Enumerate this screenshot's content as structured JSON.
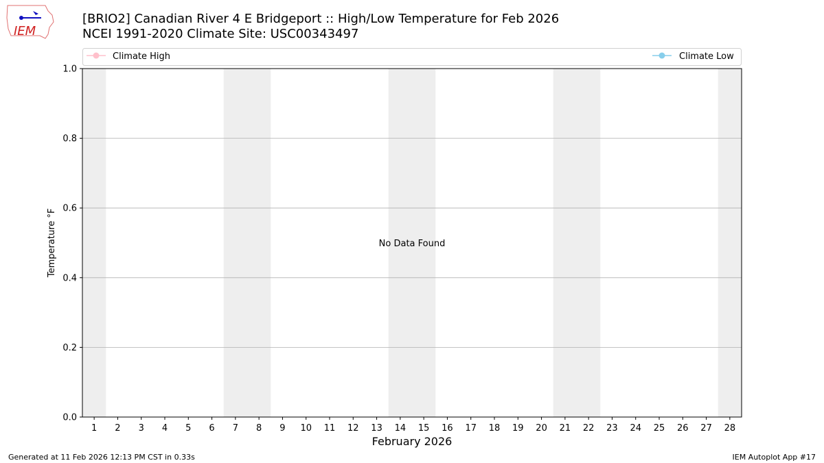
{
  "header": {
    "title_line1": "[BRIO2] Canadian River 4 E Bridgeport :: High/Low Temperature for Feb 2026",
    "title_line2": "NCEI 1991-2020 Climate Site: USC00343497",
    "logo_text": "IEM"
  },
  "footer": {
    "left": "Generated at 11 Feb 2026 12:13 PM CST in 0.33s",
    "right": "IEM Autoplot App #17"
  },
  "chart_data": {
    "type": "line",
    "xlabel": "February 2026",
    "ylabel": "Temperature °F",
    "xlim": [
      0.5,
      28.5
    ],
    "ylim": [
      0,
      1
    ],
    "x_ticks": [
      1,
      2,
      3,
      4,
      5,
      6,
      7,
      8,
      9,
      10,
      11,
      12,
      13,
      14,
      15,
      16,
      17,
      18,
      19,
      20,
      21,
      22,
      23,
      24,
      25,
      26,
      27,
      28
    ],
    "y_ticks": [
      "0.0",
      "0.2",
      "0.4",
      "0.6",
      "0.8",
      "1.0"
    ],
    "grid": "horizontal",
    "weekend_shading_days": [
      1,
      7,
      8,
      14,
      15,
      21,
      22,
      28
    ],
    "shading_color": "#eeeeee",
    "legend_placement": "top",
    "series": [
      {
        "name": "Climate High",
        "color": "#ffc0cb",
        "values": []
      },
      {
        "name": "Climate Low",
        "color": "#87ceeb",
        "values": []
      }
    ],
    "annotation": "No Data Found"
  }
}
